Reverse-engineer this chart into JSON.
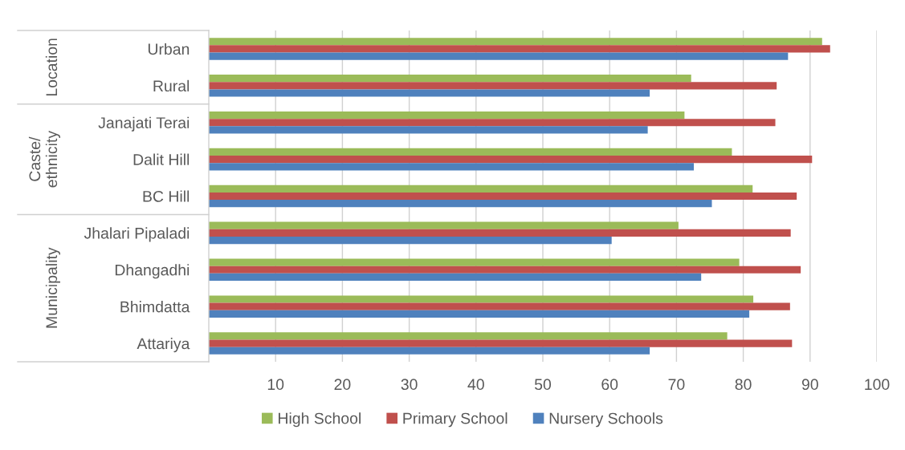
{
  "chart_data": {
    "type": "bar",
    "orientation": "horizontal",
    "categories": [
      "Urban",
      "Rural",
      "Janajati Terai",
      "Dalit Hill",
      "BC Hill",
      "Jhalari Pipaladi",
      "Dhangadhi",
      "Bhimdatta",
      "Attariya"
    ],
    "series": [
      {
        "name": "High School",
        "color": "#9bbb59",
        "values": [
          91.8,
          72.2,
          71.2,
          78.3,
          81.4,
          70.3,
          79.4,
          81.5,
          77.6
        ]
      },
      {
        "name": "Primary School",
        "color": "#c0504d",
        "values": [
          93.0,
          85.0,
          84.8,
          90.3,
          88.0,
          87.1,
          88.6,
          87.0,
          87.3
        ]
      },
      {
        "name": "Nursery Schools",
        "color": "#4f81bd",
        "values": [
          86.7,
          66.0,
          65.7,
          72.6,
          75.3,
          60.3,
          73.7,
          80.9,
          66.0
        ]
      }
    ],
    "xlim": [
      0,
      100
    ],
    "xticks": [
      10,
      20,
      30,
      40,
      50,
      60,
      70,
      80,
      90,
      100
    ],
    "grid": "x",
    "legend": "bottom",
    "annotations": [
      "Location",
      "Caste/\nethnicity",
      "Municipality"
    ]
  }
}
